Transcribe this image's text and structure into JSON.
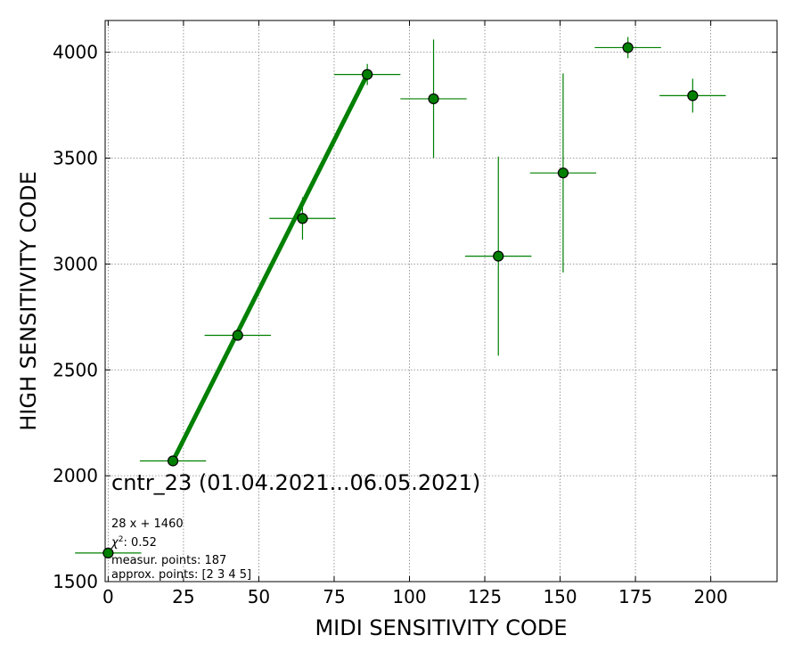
{
  "chart_data": {
    "type": "scatter",
    "title": "cntr_23 (01.04.2021...06.05.2021)",
    "xlabel": "MIDI SENSITIVITY CODE",
    "ylabel": "HIGH SENSITIVITY CODE",
    "xlim": [
      -1,
      222
    ],
    "ylim": [
      1500,
      4150
    ],
    "xticks": [
      0,
      25,
      50,
      75,
      100,
      125,
      150,
      175,
      200
    ],
    "yticks": [
      1500,
      2000,
      2500,
      3000,
      3500,
      4000
    ],
    "grid": true,
    "colors": {
      "marker": "#008000",
      "marker_edge": "#000000",
      "fit": "#008000",
      "errorbar": "#008000"
    },
    "points": [
      {
        "x": 0,
        "y": 1635,
        "xerr": 11,
        "yerr": 0
      },
      {
        "x": 21.5,
        "y": 2070,
        "xerr": 11,
        "yerr": 10
      },
      {
        "x": 43,
        "y": 2663,
        "xerr": 11,
        "yerr": 20
      },
      {
        "x": 64.5,
        "y": 3215,
        "xerr": 11,
        "yerr": 100
      },
      {
        "x": 86,
        "y": 3895,
        "xerr": 11,
        "yerr": 50
      },
      {
        "x": 108,
        "y": 3780,
        "xerr": 11,
        "yerr": 280
      },
      {
        "x": 129.5,
        "y": 3037,
        "xerr": 11,
        "yerr": 470
      },
      {
        "x": 151,
        "y": 3430,
        "xerr": 11,
        "yerr": 470
      },
      {
        "x": 172.5,
        "y": 4022,
        "xerr": 11,
        "yerr": 50
      },
      {
        "x": 194,
        "y": 3795,
        "xerr": 11,
        "yerr": 80
      }
    ],
    "fit_line": {
      "x": [
        21.5,
        86
      ],
      "y": [
        2070,
        3895
      ]
    },
    "info": {
      "equation": "28 x + 1460",
      "chi2_symbol": "χ",
      "chi2_exp": "2",
      "chi2_value": ": 0.52",
      "measured": "measur. points: 187",
      "approx": "approx. points: [2 3 4 5]"
    }
  }
}
